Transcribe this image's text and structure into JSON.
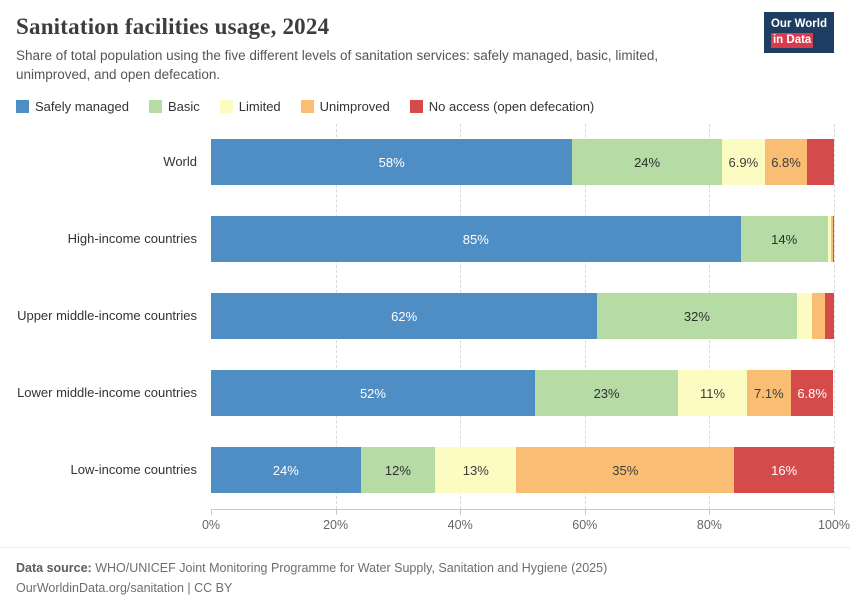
{
  "logo": {
    "line1": "Our World",
    "line2": "in Data"
  },
  "header": {
    "title": "Sanitation facilities usage, 2024",
    "subtitle": "Share of total population using the five different levels of sanitation services: safely managed, basic, limited, unimproved, and open defecation."
  },
  "legend": [
    {
      "key": "safely-managed",
      "label": "Safely managed",
      "color": "#4e8ec5"
    },
    {
      "key": "basic",
      "label": "Basic",
      "color": "#b6dba4"
    },
    {
      "key": "limited",
      "label": "Limited",
      "color": "#fcfbc1"
    },
    {
      "key": "unimproved",
      "label": "Unimproved",
      "color": "#f9bd74"
    },
    {
      "key": "no-access",
      "label": "No access (open defecation)",
      "color": "#d54a4a"
    }
  ],
  "chart_data": {
    "type": "bar",
    "orientation": "horizontal-stacked",
    "title": "Sanitation facilities usage, 2024",
    "xlabel": "",
    "ylabel": "",
    "xlim": [
      0,
      100
    ],
    "grid": true,
    "legend_position": "top",
    "ticks": [
      "0%",
      "20%",
      "40%",
      "60%",
      "80%",
      "100%"
    ],
    "categories": [
      "World",
      "High-income countries",
      "Upper middle-income countries",
      "Lower middle-income countries",
      "Low-income countries"
    ],
    "series": [
      {
        "key": "safely-managed",
        "name": "Safely managed",
        "color": "#4e8ec5",
        "label_color": "#ffffff",
        "values": [
          58,
          85,
          62,
          52,
          24
        ],
        "labels": [
          "58%",
          "85%",
          "62%",
          "52%",
          "24%"
        ]
      },
      {
        "key": "basic",
        "name": "Basic",
        "color": "#b6dba4",
        "label_color": "#2f2f2f",
        "values": [
          24,
          14,
          32,
          23,
          12
        ],
        "labels": [
          "24%",
          "14%",
          "32%",
          "23%",
          "12%"
        ]
      },
      {
        "key": "limited",
        "name": "Limited",
        "color": "#fcfbc1",
        "label_color": "#3d3d3d",
        "values": [
          6.9,
          0.5,
          2.5,
          11,
          13
        ],
        "labels": [
          "6.9%",
          "",
          "",
          "11%",
          "13%"
        ]
      },
      {
        "key": "unimproved",
        "name": "Unimproved",
        "color": "#f9bd74",
        "label_color": "#3d3d3d",
        "values": [
          6.8,
          0.3,
          2.0,
          7.1,
          35
        ],
        "labels": [
          "6.8%",
          "",
          "",
          "7.1%",
          "35%"
        ]
      },
      {
        "key": "no-access",
        "name": "No access (open defecation)",
        "color": "#d54a4a",
        "label_color": "#ffffff",
        "values": [
          4.3,
          0.2,
          1.5,
          6.8,
          16
        ],
        "labels": [
          "",
          "",
          "",
          "6.8%",
          "16%"
        ]
      }
    ]
  },
  "footer": {
    "source_label": "Data source:",
    "source": "WHO/UNICEF Joint Monitoring Programme for Water Supply, Sanitation and Hygiene (2025)",
    "link": "OurWorldinData.org/sanitation",
    "license": "| CC BY"
  }
}
